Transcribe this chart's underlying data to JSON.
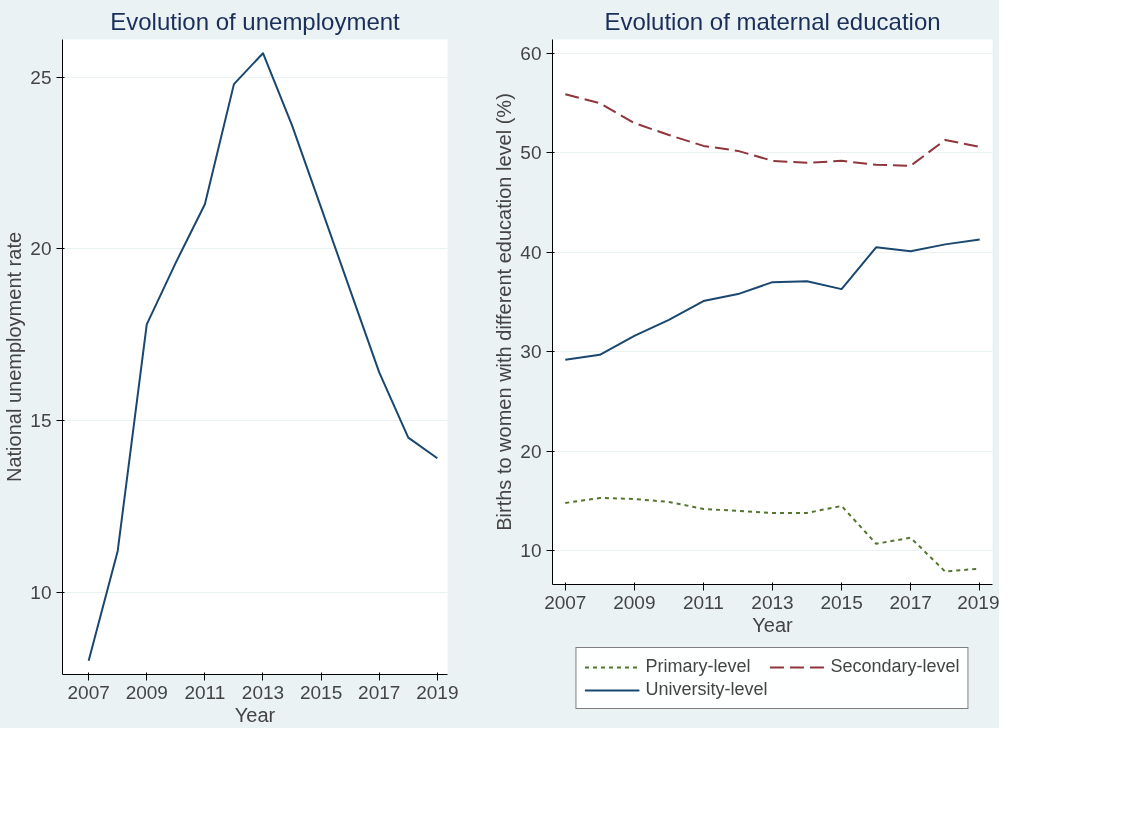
{
  "chart_data": [
    {
      "type": "line",
      "title": "Evolution of unemployment",
      "xlabel": "Year",
      "ylabel": "National unemployment rate",
      "x": [
        2007,
        2008,
        2009,
        2010,
        2011,
        2012,
        2013,
        2014,
        2015,
        2016,
        2017,
        2018,
        2019
      ],
      "series": [
        {
          "color": "#1a476f",
          "values": [
            8.0,
            11.2,
            17.8,
            19.6,
            21.3,
            24.8,
            25.7,
            23.6,
            21.2,
            18.8,
            16.4,
            14.5,
            13.9
          ]
        }
      ],
      "xlim": [
        2006.1,
        2019.35
      ],
      "ylim": [
        7.6,
        26.1
      ],
      "xticks": [
        2007,
        2009,
        2011,
        2013,
        2015,
        2017,
        2019
      ],
      "yticks": [
        10,
        15,
        20,
        25
      ],
      "grid": "y",
      "legend": false,
      "line_style": "solid"
    },
    {
      "type": "line",
      "title": "Evolution of maternal education",
      "xlabel": "Year",
      "ylabel": "Births to women with different education level (%)",
      "x": [
        2007,
        2008,
        2009,
        2010,
        2011,
        2012,
        2013,
        2014,
        2015,
        2016,
        2017,
        2018,
        2019
      ],
      "series": [
        {
          "name": "Primary-level",
          "color": "#55752f",
          "line_style": "dotted",
          "values": [
            14.8,
            15.3,
            15.2,
            14.9,
            14.2,
            14.0,
            13.8,
            13.8,
            14.5,
            10.7,
            11.3,
            7.9,
            8.2
          ]
        },
        {
          "name": "Secondary-level",
          "color": "#90353b",
          "line_style": "dashed",
          "values": [
            55.9,
            55.0,
            53.0,
            51.8,
            50.7,
            50.2,
            49.2,
            49.0,
            49.2,
            48.8,
            48.7,
            51.3,
            50.6
          ]
        },
        {
          "name": "University-level",
          "color": "#1a476f",
          "line_style": "solid",
          "values": [
            29.2,
            29.7,
            31.6,
            33.2,
            35.1,
            35.8,
            37.0,
            37.1,
            36.3,
            40.5,
            40.1,
            40.8,
            41.3
          ]
        }
      ],
      "xlim": [
        2006.63,
        2019.37
      ],
      "ylim": [
        6.6,
        61.4
      ],
      "xticks": [
        2007,
        2009,
        2011,
        2013,
        2015,
        2017,
        2019
      ],
      "yticks": [
        10,
        20,
        30,
        40,
        50,
        60
      ],
      "grid": "y",
      "legend": "bottom"
    }
  ]
}
